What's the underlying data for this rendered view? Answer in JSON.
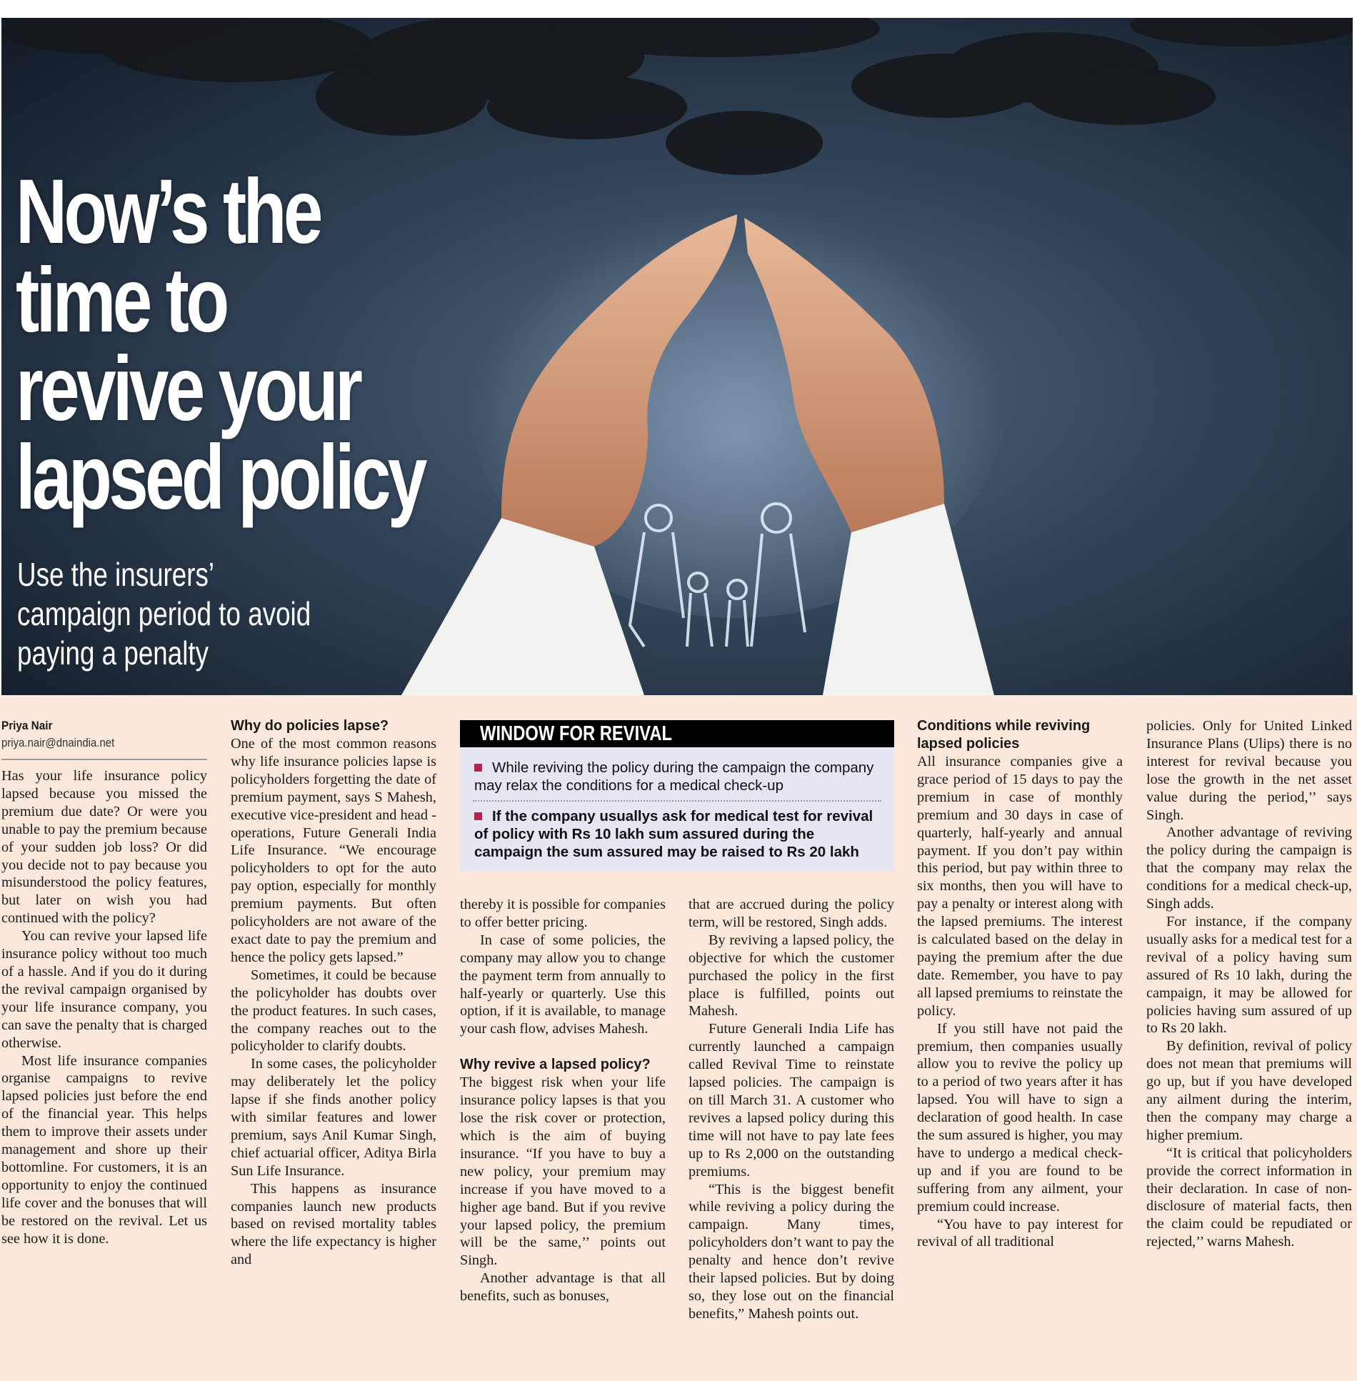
{
  "headline": {
    "lines": [
      "Now’s the",
      "time to",
      "revive your",
      "lapsed policy"
    ],
    "subhead_lines": [
      "Use the insurers’",
      "campaign period to avoid",
      "paying a penalty"
    ]
  },
  "byline": {
    "author": "Priya Nair",
    "email": "priya.nair@dnaindia.net"
  },
  "colors": {
    "paper": "#fbe8da",
    "box": "#e5e6f2",
    "bullet": "#b3244e"
  },
  "sidebar_box": {
    "title": "WINDOW FOR REVIVAL",
    "items": [
      "While reviving the policy during the campaign the company may relax the conditions for a medical check-up",
      "If the company usuallys ask for medical test for revival of policy with Rs 10 lakh sum assured during the campaign the sum assured may be raised to Rs 20 lakh"
    ]
  },
  "columns": {
    "c1": [
      "Has your life insurance policy lapsed because you missed the premium due date? Or were you unable to pay the premium because of your sudden job loss? Or did you decide not to pay because you misunderstood the policy features, but later on wish you had continued with the policy?",
      "You can revive your lapsed life insurance policy without too much of a hassle. And if you do it during the revival campaign organised by your life insurance company, you can save the penalty that is charged otherwise.",
      "Most life insurance companies organise campaigns to revive lapsed policies just before the end of the financial year. This helps them to improve their assets under management and shore up their bottomline. For customers, it is an opportunity to enjoy the continued life cover and the bonuses that will be restored on the revival. Let us see how it is done."
    ],
    "c2_heading": "Why do policies lapse?",
    "c2": [
      "One of the most common reasons why life insurance policies lapse is policyholders forgetting the date of premium payment, says S Mahesh, executive vice-president and head - operations, Future Generali India Life Insurance. “We encourage policyholders to opt for the auto pay option, especially for monthly premium payments. But often policyholders are not aware of the exact date to pay the premium and hence the policy gets lapsed.”",
      "Sometimes, it could be because the policyholder has doubts over the product features. In such cases, the company reaches out to the policyholder to clarify doubts.",
      "In some cases, the policyholder may deliberately let the policy lapse if she finds another policy with similar features and lower premium, says Anil Kumar Singh, chief actuarial officer, Aditya Birla Sun Life Insurance.",
      "This happens as insurance companies launch new products based on revised mortality tables where the life expectancy is higher and"
    ],
    "c3a": [
      "thereby it is possible for companies to offer better pricing.",
      "In case of some policies, the company may allow you to change the payment term from annually to half-yearly or quarterly. Use this option, if it is available, to manage your cash flow, advises Mahesh."
    ],
    "c3_heading": "Why revive a lapsed policy?",
    "c3b": [
      "The biggest risk when your life insurance policy lapses is that you lose the risk cover or protection, which is the aim of buying insurance. “If you have to buy a new policy, your premium may increase if you have moved to a higher age band. But if you revive your lapsed policy, the premium will be the same,’’ points out Singh.",
      "Another advantage is that all benefits, such as bonuses,"
    ],
    "c4": [
      "that are accrued during the policy term, will be restored, Singh adds.",
      "By reviving a lapsed policy, the objective for which the customer purchased the policy in the first place is fulfilled, points out Mahesh.",
      "Future Generali India Life has currently launched a campaign called Revival Time to reinstate lapsed policies. The campaign is on till March 31. A customer who revives a lapsed policy during this time will not have to pay late fees up to Rs 2,000 on the outstanding premiums.",
      "“This is the biggest benefit while reviving a policy during the campaign. Many times, policyholders don’t want to pay the penalty and hence don’t revive their lapsed policies. But by doing so, they lose out on the financial benefits,” Mahesh points out."
    ],
    "c5_heading": "Conditions while reviving lapsed policies",
    "c5": [
      "All insurance companies give a grace period of 15 days to pay the premium in case of monthly premium and 30 days in case of quarterly, half-yearly and annual payment. If you don’t pay within this period, but pay within three to six months, then you will have to pay a penalty or interest along with the lapsed premiums. The interest is calculated based on the delay in paying the premium after the due date. Remember, you have to pay all lapsed premiums to reinstate the policy.",
      "If you still have not paid the premium, then companies usually allow you to revive the policy up to a period of two years after it has lapsed. You will have to sign a declaration of good health. In case the sum assured is higher, you may have to undergo a medical check-up and if you are found to be suffering from any ailment, your premium could increase.",
      "“You have to pay interest for revival of all traditional"
    ],
    "c6": [
      "policies. Only for United Linked Insurance Plans (Ulips) there is no interest for revival because you lose the growth in the net asset value during the period,’’ says Singh.",
      "Another advantage of reviving the policy during the campaign is that the company may relax the conditions for a medical check-up, Singh adds.",
      "For instance, if the company usually asks for a medical test for a revival of a policy having sum assured of Rs 10 lakh, during the campaign, it may be allowed for policies having sum assured of up to Rs 20 lakh.",
      "By definition, revival of policy does not mean that premiums will go up, but if you have developed any ailment during the interim, then the company may charge a higher premium.",
      "“It is critical that policyholders provide the correct information in their declaration. In case of non-disclosure of material facts, then the claim could be repudiated or rejected,’’ warns Mahesh."
    ]
  }
}
